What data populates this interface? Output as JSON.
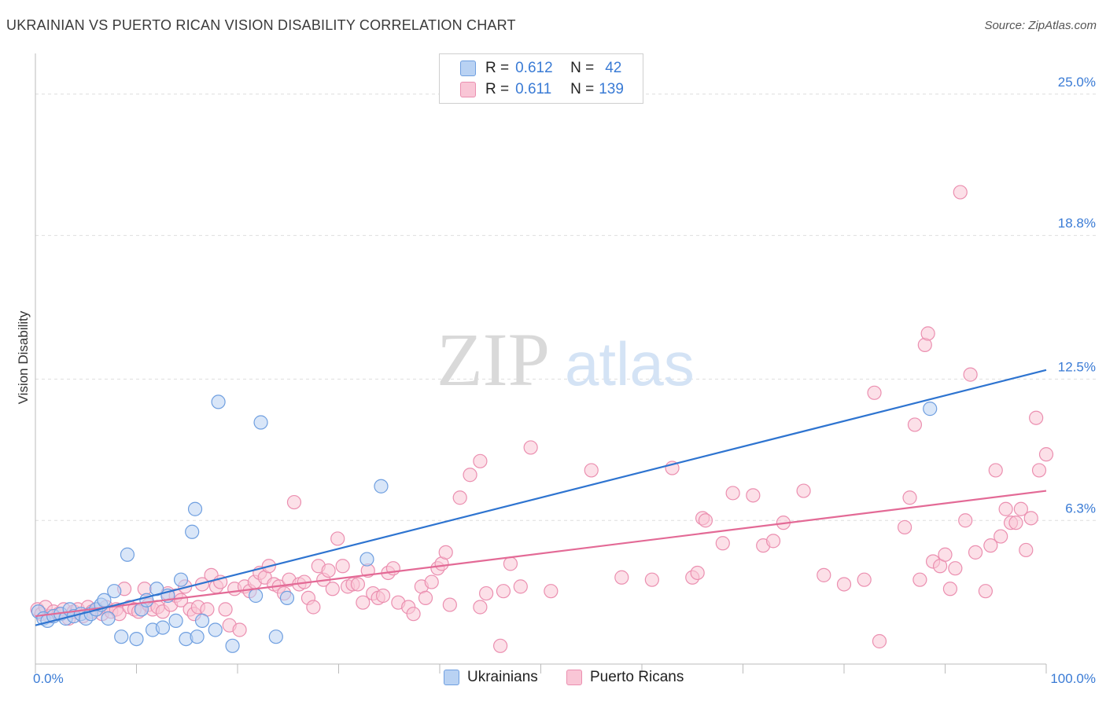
{
  "title": "UKRAINIAN VS PUERTO RICAN VISION DISABILITY CORRELATION CHART",
  "source": "Source: ZipAtlas.com",
  "watermark": {
    "zip": "ZIP",
    "atlas": "atlas"
  },
  "legend": {
    "r_label": "R =",
    "n_label": "N =",
    "rows": [
      {
        "r": "0.612",
        "n": "42"
      },
      {
        "r": "0.611",
        "n": "139"
      }
    ]
  },
  "colors": {
    "ukrainians_fill": "#b9d2f3",
    "ukrainians_stroke": "#6f9fe0",
    "ukrainians_line": "#2e74d0",
    "puerto_fill": "#f9c6d6",
    "puerto_stroke": "#eb8fb0",
    "puerto_line": "#e36a96",
    "axis_label": "#3a7bd5"
  },
  "chart_data": {
    "type": "scatter",
    "title": "UKRAINIAN VS PUERTO RICAN VISION DISABILITY CORRELATION CHART",
    "ylabel": "Vision Disability",
    "xlabel": "",
    "xlim": [
      0,
      100
    ],
    "ylim": [
      0,
      26.2
    ],
    "y_ticks": [
      6.3,
      12.5,
      18.8,
      25.0
    ],
    "y_tick_labels": [
      "6.3%",
      "12.5%",
      "18.8%",
      "25.0%"
    ],
    "x_tick_labels": [
      "0.0%",
      "100.0%"
    ],
    "legend_labels": [
      "Ukrainians",
      "Puerto Ricans"
    ],
    "series": [
      {
        "name": "Ukrainians",
        "r": 0.612,
        "n": 42,
        "trend": {
          "x": [
            0,
            100
          ],
          "y": [
            1.7,
            12.9
          ]
        },
        "points": [
          [
            0.3,
            2.3
          ],
          [
            0.8,
            2.0
          ],
          [
            1.2,
            1.9
          ],
          [
            1.8,
            2.1
          ],
          [
            2.5,
            2.2
          ],
          [
            3.0,
            2.0
          ],
          [
            3.4,
            2.4
          ],
          [
            3.8,
            2.1
          ],
          [
            4.5,
            2.2
          ],
          [
            5.0,
            2.0
          ],
          [
            5.5,
            2.2
          ],
          [
            6.0,
            2.4
          ],
          [
            6.5,
            2.6
          ],
          [
            6.8,
            2.8
          ],
          [
            7.2,
            2.0
          ],
          [
            7.8,
            3.2
          ],
          [
            8.5,
            1.2
          ],
          [
            9.1,
            4.8
          ],
          [
            10.0,
            1.1
          ],
          [
            10.5,
            2.4
          ],
          [
            11.0,
            2.8
          ],
          [
            11.6,
            1.5
          ],
          [
            12.0,
            3.3
          ],
          [
            12.6,
            1.6
          ],
          [
            13.1,
            3.0
          ],
          [
            13.9,
            1.9
          ],
          [
            14.4,
            3.7
          ],
          [
            14.9,
            1.1
          ],
          [
            15.5,
            5.8
          ],
          [
            15.8,
            6.8
          ],
          [
            16.0,
            1.2
          ],
          [
            16.5,
            1.9
          ],
          [
            17.8,
            1.5
          ],
          [
            18.1,
            11.5
          ],
          [
            19.5,
            0.8
          ],
          [
            21.8,
            3.0
          ],
          [
            22.3,
            10.6
          ],
          [
            23.8,
            1.2
          ],
          [
            24.9,
            2.9
          ],
          [
            32.8,
            4.6
          ],
          [
            34.2,
            7.8
          ],
          [
            88.5,
            11.2
          ]
        ]
      },
      {
        "name": "Puerto Ricans",
        "r": 0.611,
        "n": 139,
        "trend": {
          "x": [
            0,
            100
          ],
          "y": [
            2.1,
            7.6
          ]
        },
        "points": [
          [
            0.2,
            2.4
          ],
          [
            0.6,
            2.2
          ],
          [
            1.0,
            2.5
          ],
          [
            1.4,
            2.1
          ],
          [
            1.8,
            2.3
          ],
          [
            2.3,
            2.2
          ],
          [
            2.8,
            2.4
          ],
          [
            3.3,
            2.0
          ],
          [
            3.8,
            2.3
          ],
          [
            4.2,
            2.4
          ],
          [
            4.7,
            2.1
          ],
          [
            5.2,
            2.5
          ],
          [
            5.6,
            2.3
          ],
          [
            6.1,
            2.4
          ],
          [
            6.6,
            2.2
          ],
          [
            7.0,
            2.5
          ],
          [
            7.5,
            2.3
          ],
          [
            8.0,
            2.4
          ],
          [
            8.3,
            2.2
          ],
          [
            8.8,
            3.3
          ],
          [
            9.3,
            2.5
          ],
          [
            9.8,
            2.4
          ],
          [
            10.2,
            2.3
          ],
          [
            10.8,
            3.3
          ],
          [
            11.2,
            2.6
          ],
          [
            11.6,
            2.4
          ],
          [
            12.1,
            2.5
          ],
          [
            12.6,
            2.3
          ],
          [
            13.1,
            3.1
          ],
          [
            13.4,
            2.6
          ],
          [
            13.9,
            3.0
          ],
          [
            14.4,
            2.8
          ],
          [
            14.8,
            3.4
          ],
          [
            15.3,
            2.4
          ],
          [
            15.7,
            2.2
          ],
          [
            16.1,
            2.5
          ],
          [
            16.5,
            3.5
          ],
          [
            17.0,
            2.4
          ],
          [
            17.4,
            3.9
          ],
          [
            17.9,
            3.4
          ],
          [
            18.3,
            3.6
          ],
          [
            18.8,
            2.4
          ],
          [
            19.2,
            1.7
          ],
          [
            19.7,
            3.3
          ],
          [
            20.2,
            1.5
          ],
          [
            20.7,
            3.4
          ],
          [
            21.2,
            3.2
          ],
          [
            21.7,
            3.6
          ],
          [
            22.2,
            4.0
          ],
          [
            22.7,
            3.8
          ],
          [
            23.1,
            4.3
          ],
          [
            23.6,
            3.5
          ],
          [
            24.1,
            3.4
          ],
          [
            24.6,
            3.1
          ],
          [
            25.1,
            3.7
          ],
          [
            25.6,
            7.1
          ],
          [
            26.1,
            3.5
          ],
          [
            26.6,
            3.6
          ],
          [
            27.0,
            2.9
          ],
          [
            27.5,
            2.5
          ],
          [
            28.0,
            4.3
          ],
          [
            28.5,
            3.7
          ],
          [
            29.0,
            4.1
          ],
          [
            29.4,
            3.3
          ],
          [
            29.9,
            5.5
          ],
          [
            30.4,
            4.3
          ],
          [
            30.9,
            3.4
          ],
          [
            31.4,
            3.5
          ],
          [
            31.9,
            3.5
          ],
          [
            32.4,
            2.7
          ],
          [
            32.9,
            4.1
          ],
          [
            33.4,
            3.1
          ],
          [
            33.9,
            2.9
          ],
          [
            34.4,
            3.0
          ],
          [
            34.9,
            4.0
          ],
          [
            35.4,
            4.2
          ],
          [
            35.9,
            2.7
          ],
          [
            36.9,
            2.5
          ],
          [
            37.4,
            2.2
          ],
          [
            38.2,
            3.4
          ],
          [
            38.6,
            2.9
          ],
          [
            39.2,
            3.6
          ],
          [
            39.8,
            4.2
          ],
          [
            40.2,
            4.4
          ],
          [
            40.6,
            4.9
          ],
          [
            41.0,
            2.6
          ],
          [
            42.0,
            7.3
          ],
          [
            43.0,
            8.3
          ],
          [
            44.0,
            2.5
          ],
          [
            44.0,
            8.9
          ],
          [
            44.6,
            3.1
          ],
          [
            46.0,
            0.8
          ],
          [
            46.3,
            3.2
          ],
          [
            47.0,
            4.4
          ],
          [
            48.0,
            3.4
          ],
          [
            49.0,
            9.5
          ],
          [
            51.0,
            3.2
          ],
          [
            55.0,
            8.5
          ],
          [
            58.0,
            3.8
          ],
          [
            61.0,
            3.7
          ],
          [
            63.0,
            8.6
          ],
          [
            65.0,
            3.8
          ],
          [
            65.5,
            4.0
          ],
          [
            66.0,
            6.4
          ],
          [
            66.3,
            6.3
          ],
          [
            68.0,
            5.3
          ],
          [
            69.0,
            7.5
          ],
          [
            71.0,
            7.4
          ],
          [
            72.0,
            5.2
          ],
          [
            73.0,
            5.4
          ],
          [
            74.0,
            6.2
          ],
          [
            76.0,
            7.6
          ],
          [
            78.0,
            3.9
          ],
          [
            80.0,
            3.5
          ],
          [
            82.0,
            3.7
          ],
          [
            83.0,
            11.9
          ],
          [
            83.5,
            1.0
          ],
          [
            86.0,
            6.0
          ],
          [
            86.5,
            7.3
          ],
          [
            87.0,
            10.5
          ],
          [
            87.5,
            3.7
          ],
          [
            88.0,
            14.0
          ],
          [
            88.3,
            14.5
          ],
          [
            88.8,
            4.5
          ],
          [
            89.5,
            4.3
          ],
          [
            90.0,
            4.8
          ],
          [
            90.5,
            3.3
          ],
          [
            91.0,
            4.2
          ],
          [
            91.5,
            20.7
          ],
          [
            92.0,
            6.3
          ],
          [
            92.5,
            12.7
          ],
          [
            93.0,
            4.9
          ],
          [
            94.0,
            3.2
          ],
          [
            94.5,
            5.2
          ],
          [
            95.0,
            8.5
          ],
          [
            95.5,
            5.6
          ],
          [
            96.0,
            6.8
          ],
          [
            96.5,
            6.2
          ],
          [
            97.0,
            6.2
          ],
          [
            97.5,
            6.8
          ],
          [
            98.0,
            5.0
          ],
          [
            98.5,
            6.4
          ],
          [
            99.0,
            10.8
          ],
          [
            99.3,
            8.5
          ],
          [
            100.0,
            9.2
          ]
        ]
      }
    ]
  }
}
